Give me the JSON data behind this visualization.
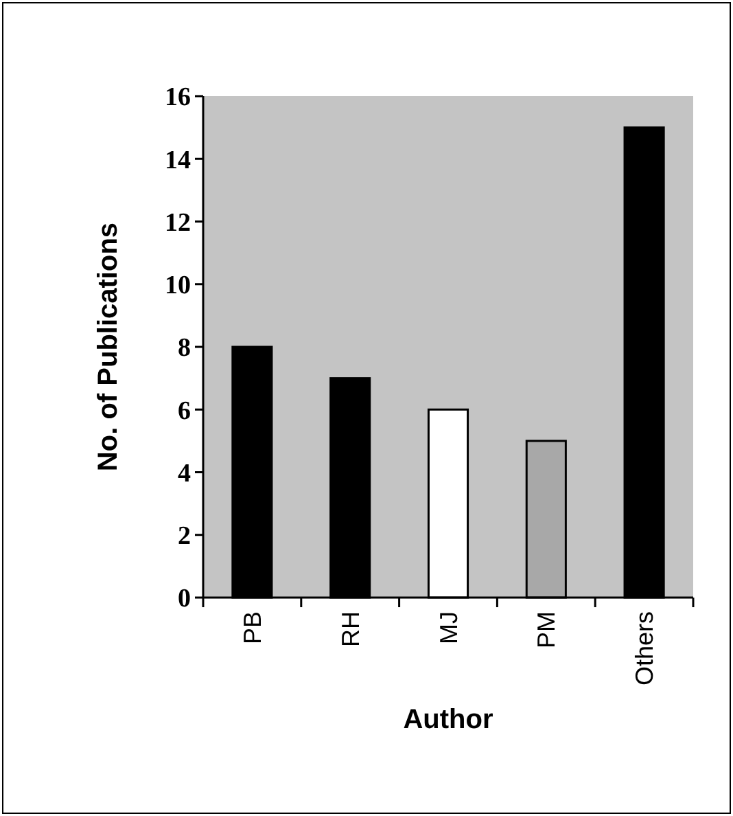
{
  "chart_data": {
    "type": "bar",
    "xlabel": "Author",
    "ylabel": "No. of Publications",
    "categories": [
      "PB",
      "RH",
      "MJ",
      "PM",
      "Others"
    ],
    "values": [
      8,
      7,
      6,
      5,
      15
    ],
    "colors": [
      "#000000",
      "#000000",
      "#ffffff",
      "#a8a8a8",
      "#000000"
    ],
    "ylim": [
      0,
      16
    ],
    "yticks": [
      0,
      2,
      4,
      6,
      8,
      10,
      12,
      14,
      16
    ],
    "grid": false
  }
}
